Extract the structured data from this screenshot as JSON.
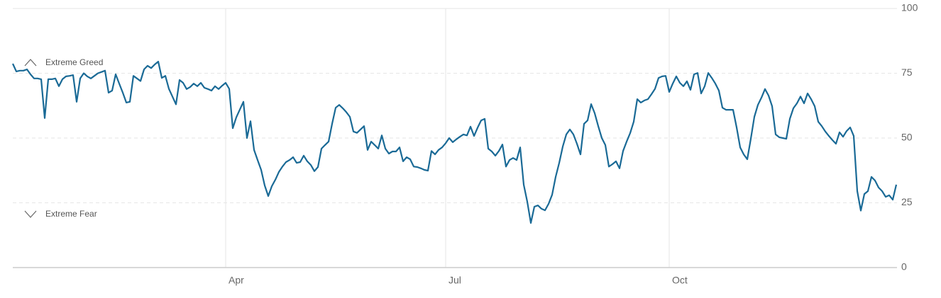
{
  "chart_data": {
    "type": "line",
    "annotations": [
      "Extreme Greed",
      "Extreme Fear"
    ],
    "categories": [
      null,
      null,
      null,
      null,
      null,
      null,
      null,
      null,
      null,
      null,
      null,
      null,
      null,
      null,
      null,
      null,
      null,
      null,
      null,
      null,
      null,
      null,
      null,
      null,
      null,
      null,
      null,
      null,
      null,
      null,
      null,
      null,
      null,
      null,
      null,
      null,
      null,
      null,
      null,
      null,
      null,
      null,
      null,
      null,
      null,
      null,
      null,
      null,
      null,
      null,
      null,
      null,
      null,
      null,
      null,
      null,
      null,
      null,
      null,
      null,
      "Apr",
      null,
      null,
      null,
      null,
      null,
      null,
      null,
      null,
      null,
      null,
      null,
      null,
      null,
      null,
      null,
      null,
      null,
      null,
      null,
      null,
      null,
      null,
      null,
      null,
      null,
      null,
      null,
      null,
      null,
      null,
      null,
      null,
      null,
      null,
      null,
      null,
      null,
      null,
      null,
      null,
      null,
      null,
      null,
      null,
      null,
      null,
      null,
      null,
      null,
      null,
      null,
      null,
      null,
      null,
      null,
      null,
      null,
      null,
      null,
      null,
      null,
      "Jul",
      null,
      null,
      null,
      null,
      null,
      null,
      null,
      null,
      null,
      null,
      null,
      null,
      null,
      null,
      null,
      null,
      null,
      null,
      null,
      null,
      null,
      null,
      null,
      null,
      null,
      null,
      null,
      null,
      null,
      null,
      null,
      null,
      null,
      null,
      null,
      null,
      null,
      null,
      null,
      null,
      null,
      null,
      null,
      null,
      null,
      null,
      null,
      null,
      null,
      null,
      null,
      null,
      null,
      null,
      null,
      null,
      null,
      null,
      null,
      null,
      null,
      null,
      "Oct",
      null,
      null,
      null,
      null,
      null,
      null,
      null,
      null,
      null,
      null,
      null,
      null,
      null,
      null,
      null,
      null,
      null,
      null,
      null,
      null,
      null,
      null,
      null,
      null,
      null,
      null,
      null,
      null,
      null,
      null,
      null,
      null,
      null,
      null,
      null,
      null,
      null,
      null,
      null,
      null,
      null,
      null,
      null,
      null,
      null,
      null,
      null,
      null,
      null,
      null,
      null,
      null,
      null,
      null,
      null,
      null,
      null,
      null,
      null,
      null,
      null,
      null,
      null,
      null
    ],
    "values": [
      78.7,
      75.7,
      76,
      76,
      76.5,
      74.6,
      73,
      73,
      72.7,
      57.7,
      72.7,
      72.7,
      73,
      70,
      72.7,
      73.8,
      74,
      74.3,
      64,
      73,
      75,
      73.8,
      73,
      74,
      75,
      75.5,
      76,
      67.5,
      68.3,
      74.6,
      71,
      67.5,
      63.7,
      64,
      74,
      73,
      72,
      76.5,
      77.9,
      77,
      78.4,
      79.5,
      73.2,
      74,
      69,
      66,
      63,
      72.4,
      71.3,
      68.9,
      69.7,
      71,
      70,
      71.3,
      69.4,
      68.9,
      68.3,
      70,
      68.9,
      70.2,
      71.3,
      69,
      53.8,
      58,
      61,
      64,
      50,
      56.5,
      45.4,
      41.5,
      37.7,
      31.7,
      27.6,
      31.4,
      33.9,
      36.9,
      39,
      40.7,
      41.5,
      42.6,
      40.4,
      40.7,
      43.2,
      41,
      39.6,
      37.2,
      38.8,
      45.9,
      47.3,
      48.6,
      55.5,
      61.7,
      62.8,
      61.5,
      60,
      58.2,
      52.5,
      52,
      53.3,
      54.6,
      45.4,
      48.6,
      47.3,
      45.9,
      51,
      45.9,
      44,
      44.8,
      44.8,
      46.4,
      41,
      42.6,
      41.8,
      39,
      38.8,
      38.3,
      37.7,
      37.4,
      45,
      43.7,
      45.4,
      46.4,
      48,
      50,
      48.4,
      49.5,
      50.5,
      51.4,
      51,
      54.4,
      50.8,
      54,
      56.8,
      57.4,
      45.9,
      44.8,
      43.2,
      45,
      47.5,
      39,
      41.5,
      42.3,
      41.5,
      46.4,
      32,
      25.4,
      17.2,
      23.5,
      24,
      22.7,
      22.1,
      24.6,
      28.1,
      35,
      40.4,
      46.7,
      51.4,
      53.3,
      51.4,
      47.8,
      43.7,
      55.5,
      56.8,
      63.1,
      59.6,
      54.6,
      50,
      47.3,
      39,
      39.9,
      41,
      38.3,
      45,
      48.6,
      51.9,
      56.3,
      65,
      63.7,
      64.5,
      65,
      66.9,
      69,
      73.2,
      73.8,
      74,
      67.8,
      71,
      73.8,
      71.3,
      70,
      71.9,
      68.6,
      74.6,
      75.1,
      67.2,
      70,
      75.1,
      73.2,
      71,
      68.3,
      61.7,
      60.9,
      60.9,
      60.9,
      54.1,
      46.4,
      43.7,
      41.8,
      49.7,
      58.2,
      62.8,
      65.6,
      68.9,
      66.4,
      62.3,
      51.4,
      50.3,
      50,
      49.7,
      57.4,
      61.5,
      63.4,
      66,
      63.4,
      67.2,
      65,
      62.3,
      56.3,
      54.6,
      52.5,
      50.8,
      49.2,
      47.8,
      52.2,
      50.5,
      52.7,
      54.1,
      50.8,
      29.5,
      22,
      28.4,
      29.5,
      35,
      33.6,
      30.9,
      29.5,
      27.3,
      27.9,
      26.2,
      32
    ],
    "color": "#1a6a96",
    "ylim": [
      0,
      100
    ],
    "yticks": [
      0,
      25,
      50,
      75,
      100
    ],
    "grid": true
  }
}
